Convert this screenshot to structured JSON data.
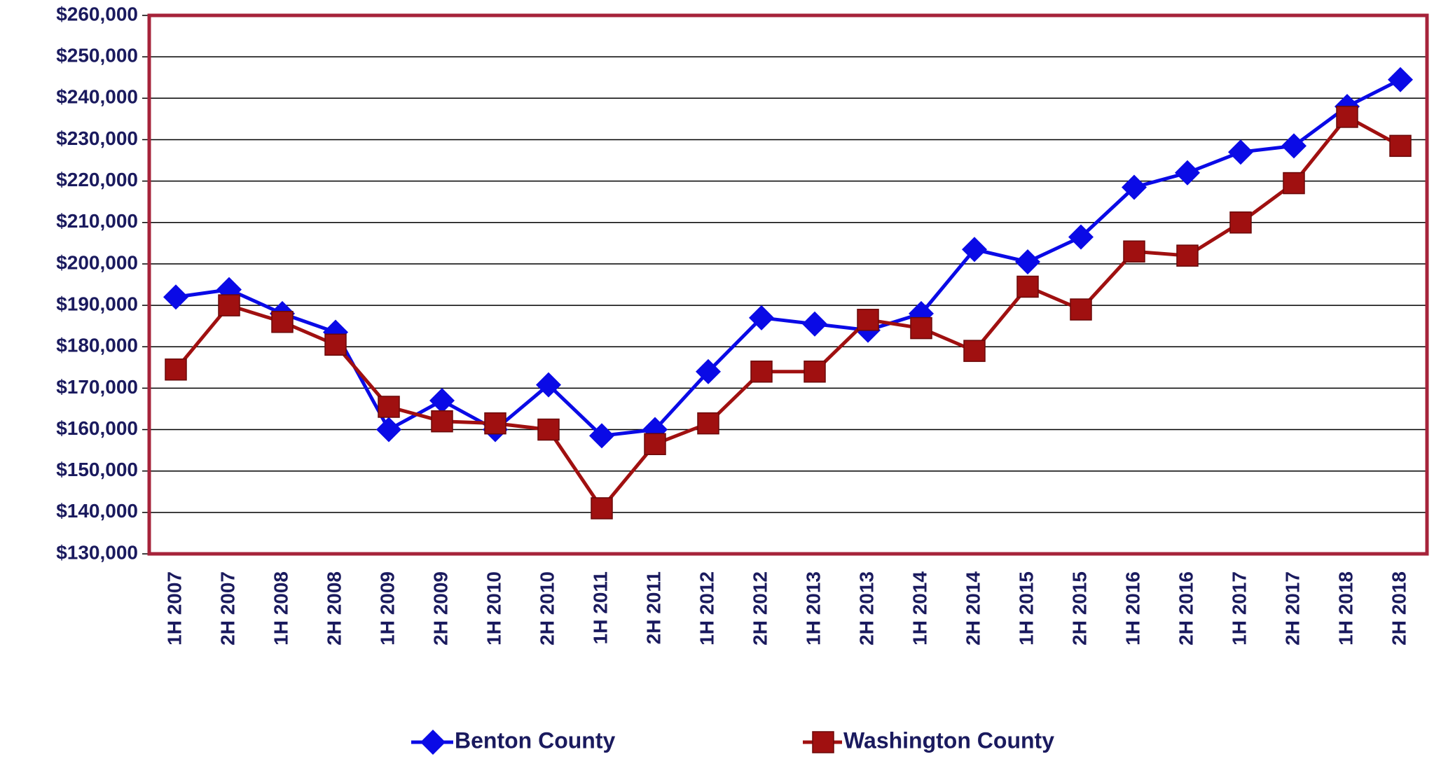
{
  "chart_data": {
    "type": "line",
    "categories": [
      "1H 2007",
      "2H 2007",
      "1H 2008",
      "2H 2008",
      "1H 2009",
      "2H 2009",
      "1H 2010",
      "2H 2010",
      "1H 2011",
      "2H 2011",
      "1H 2012",
      "2H 2012",
      "1H 2013",
      "2H 2013",
      "1H 2014",
      "2H 2014",
      "1H 2015",
      "2H 2015",
      "1H 2016",
      "2H 2016",
      "1H 2017",
      "2H 2017",
      "1H 2018",
      "2H 2018"
    ],
    "series": [
      {
        "name": "Benton County",
        "color": "#0a0ae6",
        "marker": "diamond",
        "values": [
          192000,
          193800,
          188000,
          183500,
          160000,
          167000,
          160000,
          170800,
          158500,
          160000,
          174000,
          187000,
          185500,
          184000,
          188000,
          203500,
          200500,
          206500,
          218500,
          222000,
          227000,
          228500,
          238000,
          244500
        ]
      },
      {
        "name": "Washington County",
        "color": "#a01010",
        "marker": "square",
        "values": [
          174500,
          190000,
          186000,
          180500,
          165500,
          162000,
          161500,
          160000,
          141000,
          156500,
          161500,
          174000,
          174000,
          186500,
          184500,
          179000,
          194500,
          189000,
          203000,
          202000,
          210000,
          219500,
          235500,
          228500
        ]
      }
    ],
    "ylim": [
      130000,
      260000
    ],
    "yticks": [
      {
        "value": 130000,
        "label": "$130,000"
      },
      {
        "value": 140000,
        "label": "$140,000"
      },
      {
        "value": 150000,
        "label": "$150,000"
      },
      {
        "value": 160000,
        "label": "$160,000"
      },
      {
        "value": 170000,
        "label": "$170,000"
      },
      {
        "value": 180000,
        "label": "$180,000"
      },
      {
        "value": 190000,
        "label": "$190,000"
      },
      {
        "value": 200000,
        "label": "$200,000"
      },
      {
        "value": 210000,
        "label": "$210,000"
      },
      {
        "value": 220000,
        "label": "$220,000"
      },
      {
        "value": 230000,
        "label": "$230,000"
      },
      {
        "value": 240000,
        "label": "$240,000"
      },
      {
        "value": 250000,
        "label": "$250,000"
      },
      {
        "value": 260000,
        "label": "$260,000"
      }
    ],
    "grid": true,
    "legend": "bottom"
  }
}
